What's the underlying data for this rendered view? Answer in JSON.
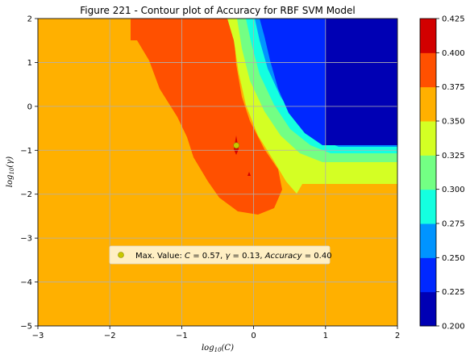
{
  "chart_data": {
    "type": "contour",
    "title": "Figure 221 - Contour plot of Accuracy for RBF SVM Model",
    "xlabel": "log10(C)",
    "ylabel": "log10(γ)",
    "xlim": [
      -3,
      2
    ],
    "ylim": [
      -5,
      2
    ],
    "x_ticks": [
      "−3",
      "−2",
      "−1",
      "0",
      "1",
      "2"
    ],
    "y_ticks": [
      "−5",
      "−4",
      "−3",
      "−2",
      "−1",
      "0",
      "1",
      "2"
    ],
    "grid": true,
    "colorbar": {
      "ticks": [
        "0.200",
        "0.225",
        "0.250",
        "0.275",
        "0.300",
        "0.325",
        "0.350",
        "0.375",
        "0.400",
        "0.425"
      ],
      "levels": [
        0.2,
        0.225,
        0.25,
        0.275,
        0.3,
        0.325,
        0.35,
        0.375,
        0.4,
        0.425
      ],
      "colors": [
        "#0000b4",
        "#0028ff",
        "#0094ff",
        "#14ffe0",
        "#73ff84",
        "#d4ff24",
        "#ffb000",
        "#ff5000",
        "#d20000"
      ]
    },
    "regions": [
      {
        "band": "0.350–0.375",
        "color": "#ffb000"
      },
      {
        "band": "0.375–0.400",
        "color": "#ff5000"
      },
      {
        "band": "0.325–0.350",
        "color": "#d4ff24"
      },
      {
        "band": "0.300–0.325",
        "color": "#73ff84"
      },
      {
        "band": "0.275–0.300",
        "color": "#14ffe0"
      },
      {
        "band": "0.250–0.275",
        "color": "#0094ff"
      },
      {
        "band": "0.225–0.250",
        "color": "#0028ff"
      },
      {
        "band": "0.200–0.225",
        "color": "#0000b4"
      }
    ],
    "max_point": {
      "C": 0.57,
      "gamma": 0.13,
      "accuracy": 0.4,
      "log10_C": -0.24,
      "log10_gamma": -0.89
    },
    "legend": {
      "placement": "lower-center",
      "prefix": "Max. Value: ",
      "C_label": "C",
      "gamma_label": "γ",
      "acc_label": "Accuracy",
      "C_value": "0.57",
      "gamma_value": "0.13",
      "acc_value": "0.40"
    }
  }
}
